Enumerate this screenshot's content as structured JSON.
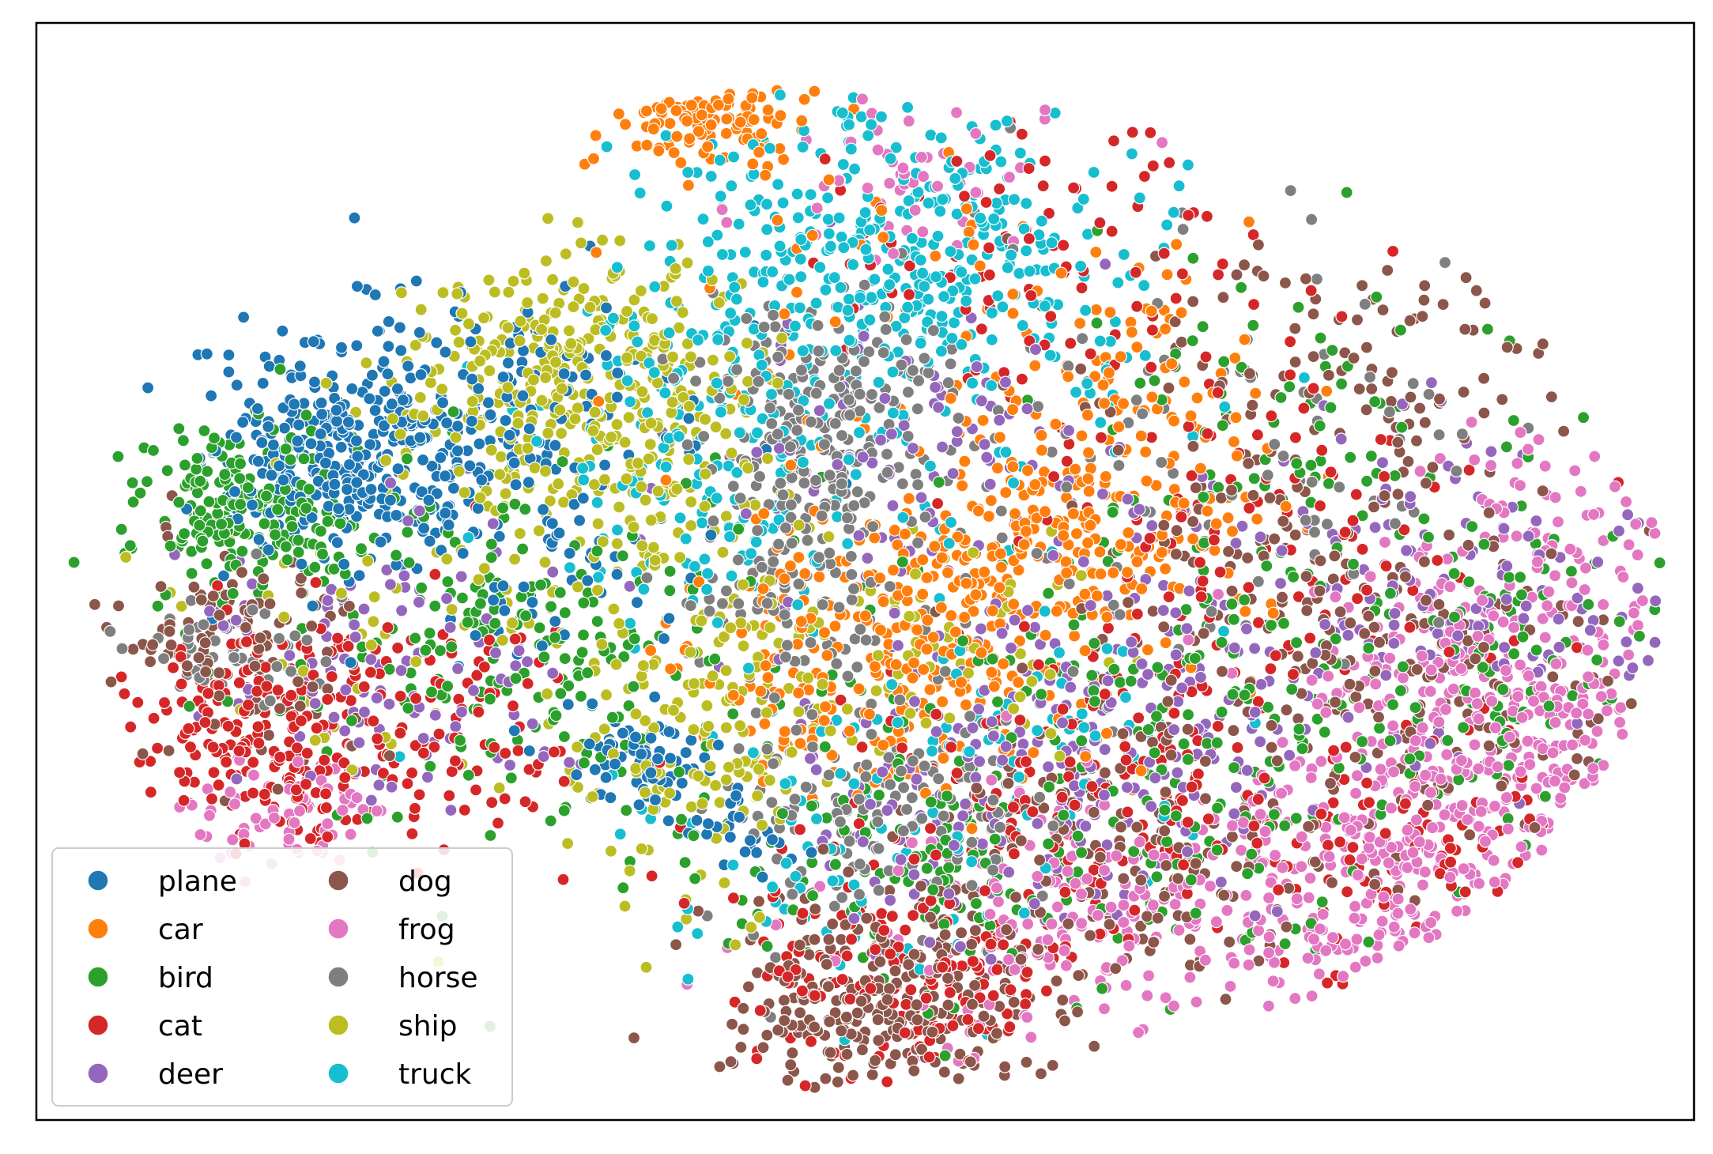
{
  "chart_data": {
    "type": "scatter",
    "title": "",
    "xlabel": "",
    "ylabel": "",
    "xlim": [
      -100,
      100
    ],
    "ylim": [
      -70,
      70
    ],
    "ticks_visible": false,
    "grid": false,
    "legend_position": "lower-left",
    "legend_columns": 2,
    "series": [
      {
        "name": "plane",
        "color": "#1f77b4",
        "clusters": [
          {
            "cx": -63,
            "cy": 12,
            "sx": 8,
            "sy": 6,
            "n": 260
          },
          {
            "cx": -58,
            "cy": 22,
            "sx": 10,
            "sy": 7,
            "n": 140
          },
          {
            "cx": -38,
            "cy": 18,
            "sx": 10,
            "sy": 8,
            "n": 80
          },
          {
            "cx": -27,
            "cy": -24,
            "sx": 4,
            "sy": 3,
            "n": 70
          },
          {
            "cx": -15,
            "cy": -33,
            "sx": 4,
            "sy": 3,
            "n": 30
          },
          {
            "cx": -40,
            "cy": 2,
            "sx": 12,
            "sy": 10,
            "n": 70
          }
        ]
      },
      {
        "name": "car",
        "color": "#ff7f0e",
        "clusters": [
          {
            "cx": -20,
            "cy": 58,
            "sx": 6,
            "sy": 3,
            "n": 110
          },
          {
            "cx": 8,
            "cy": -5,
            "sx": 12,
            "sy": 8,
            "n": 220
          },
          {
            "cx": 25,
            "cy": 5,
            "sx": 10,
            "sy": 8,
            "n": 170
          },
          {
            "cx": 10,
            "cy": 30,
            "sx": 18,
            "sy": 14,
            "n": 90
          },
          {
            "cx": 0,
            "cy": -20,
            "sx": 10,
            "sy": 6,
            "n": 80
          },
          {
            "cx": 35,
            "cy": 22,
            "sx": 10,
            "sy": 8,
            "n": 60
          }
        ]
      },
      {
        "name": "bird",
        "color": "#2ca02c",
        "clusters": [
          {
            "cx": -75,
            "cy": 8,
            "sx": 7,
            "sy": 6,
            "n": 220
          },
          {
            "cx": -40,
            "cy": -10,
            "sx": 14,
            "sy": 12,
            "n": 220
          },
          {
            "cx": 10,
            "cy": -35,
            "sx": 12,
            "sy": 10,
            "n": 130
          },
          {
            "cx": 40,
            "cy": -20,
            "sx": 18,
            "sy": 14,
            "n": 200
          },
          {
            "cx": 50,
            "cy": 20,
            "sx": 12,
            "sy": 10,
            "n": 70
          },
          {
            "cx": 78,
            "cy": -10,
            "sx": 10,
            "sy": 10,
            "n": 90
          }
        ]
      },
      {
        "name": "cat",
        "color": "#d62728",
        "clusters": [
          {
            "cx": -72,
            "cy": -20,
            "sx": 8,
            "sy": 7,
            "n": 220
          },
          {
            "cx": -50,
            "cy": -22,
            "sx": 10,
            "sy": 8,
            "n": 90
          },
          {
            "cx": 5,
            "cy": -50,
            "sx": 10,
            "sy": 8,
            "n": 170
          },
          {
            "cx": 25,
            "cy": -30,
            "sx": 12,
            "sy": 12,
            "n": 120
          },
          {
            "cx": 45,
            "cy": 0,
            "sx": 18,
            "sy": 16,
            "n": 140
          },
          {
            "cx": 20,
            "cy": 40,
            "sx": 12,
            "sy": 10,
            "n": 80
          },
          {
            "cx": 65,
            "cy": -35,
            "sx": 12,
            "sy": 8,
            "n": 80
          }
        ]
      },
      {
        "name": "deer",
        "color": "#9467bd",
        "clusters": [
          {
            "cx": -55,
            "cy": -12,
            "sx": 12,
            "sy": 10,
            "n": 120
          },
          {
            "cx": 15,
            "cy": -25,
            "sx": 14,
            "sy": 10,
            "n": 170
          },
          {
            "cx": 5,
            "cy": 15,
            "sx": 10,
            "sy": 10,
            "n": 80
          },
          {
            "cx": 40,
            "cy": -15,
            "sx": 16,
            "sy": 14,
            "n": 160
          },
          {
            "cx": 75,
            "cy": 0,
            "sx": 12,
            "sy": 10,
            "n": 110
          }
        ]
      },
      {
        "name": "dog",
        "color": "#8c564b",
        "clusters": [
          {
            "cx": -75,
            "cy": -10,
            "sx": 8,
            "sy": 8,
            "n": 110
          },
          {
            "cx": 2,
            "cy": -55,
            "sx": 10,
            "sy": 7,
            "n": 280
          },
          {
            "cx": 30,
            "cy": -35,
            "sx": 12,
            "sy": 10,
            "n": 170
          },
          {
            "cx": 55,
            "cy": -5,
            "sx": 14,
            "sy": 14,
            "n": 170
          },
          {
            "cx": 55,
            "cy": 25,
            "sx": 14,
            "sy": 8,
            "n": 90
          },
          {
            "cx": 70,
            "cy": -20,
            "sx": 14,
            "sy": 12,
            "n": 90
          }
        ]
      },
      {
        "name": "frog",
        "color": "#e377c2",
        "clusters": [
          {
            "cx": -70,
            "cy": -30,
            "sx": 7,
            "sy": 4,
            "n": 70
          },
          {
            "cx": 75,
            "cy": -20,
            "sx": 12,
            "sy": 12,
            "n": 330
          },
          {
            "cx": 60,
            "cy": -40,
            "sx": 14,
            "sy": 8,
            "n": 220
          },
          {
            "cx": 25,
            "cy": -45,
            "sx": 14,
            "sy": 8,
            "n": 150
          },
          {
            "cx": 85,
            "cy": 5,
            "sx": 8,
            "sy": 8,
            "n": 70
          },
          {
            "cx": 5,
            "cy": 50,
            "sx": 10,
            "sy": 6,
            "n": 50
          }
        ]
      },
      {
        "name": "horse",
        "color": "#7f7f7f",
        "clusters": [
          {
            "cx": -5,
            "cy": 20,
            "sx": 8,
            "sy": 8,
            "n": 200
          },
          {
            "cx": -10,
            "cy": 0,
            "sx": 8,
            "sy": 10,
            "n": 120
          },
          {
            "cx": 0,
            "cy": -30,
            "sx": 10,
            "sy": 8,
            "n": 150
          },
          {
            "cx": 40,
            "cy": 15,
            "sx": 20,
            "sy": 14,
            "n": 100
          },
          {
            "cx": -78,
            "cy": -10,
            "sx": 6,
            "sy": 4,
            "n": 50
          }
        ]
      },
      {
        "name": "ship",
        "color": "#bcbd22",
        "clusters": [
          {
            "cx": -38,
            "cy": 25,
            "sx": 10,
            "sy": 8,
            "n": 280
          },
          {
            "cx": -25,
            "cy": 15,
            "sx": 8,
            "sy": 10,
            "n": 140
          },
          {
            "cx": -20,
            "cy": -20,
            "sx": 8,
            "sy": 12,
            "n": 160
          },
          {
            "cx": 5,
            "cy": -10,
            "sx": 10,
            "sy": 8,
            "n": 70
          },
          {
            "cx": -60,
            "cy": -5,
            "sx": 14,
            "sy": 10,
            "n": 60
          }
        ]
      },
      {
        "name": "truck",
        "color": "#17becf",
        "clusters": [
          {
            "cx": 0,
            "cy": 42,
            "sx": 14,
            "sy": 10,
            "n": 320
          },
          {
            "cx": -20,
            "cy": 15,
            "sx": 10,
            "sy": 10,
            "n": 150
          },
          {
            "cx": 15,
            "cy": 30,
            "sx": 14,
            "sy": 12,
            "n": 100
          },
          {
            "cx": -5,
            "cy": -35,
            "sx": 12,
            "sy": 10,
            "n": 70
          },
          {
            "cx": 20,
            "cy": -20,
            "sx": 12,
            "sy": 10,
            "n": 60
          }
        ]
      }
    ]
  }
}
